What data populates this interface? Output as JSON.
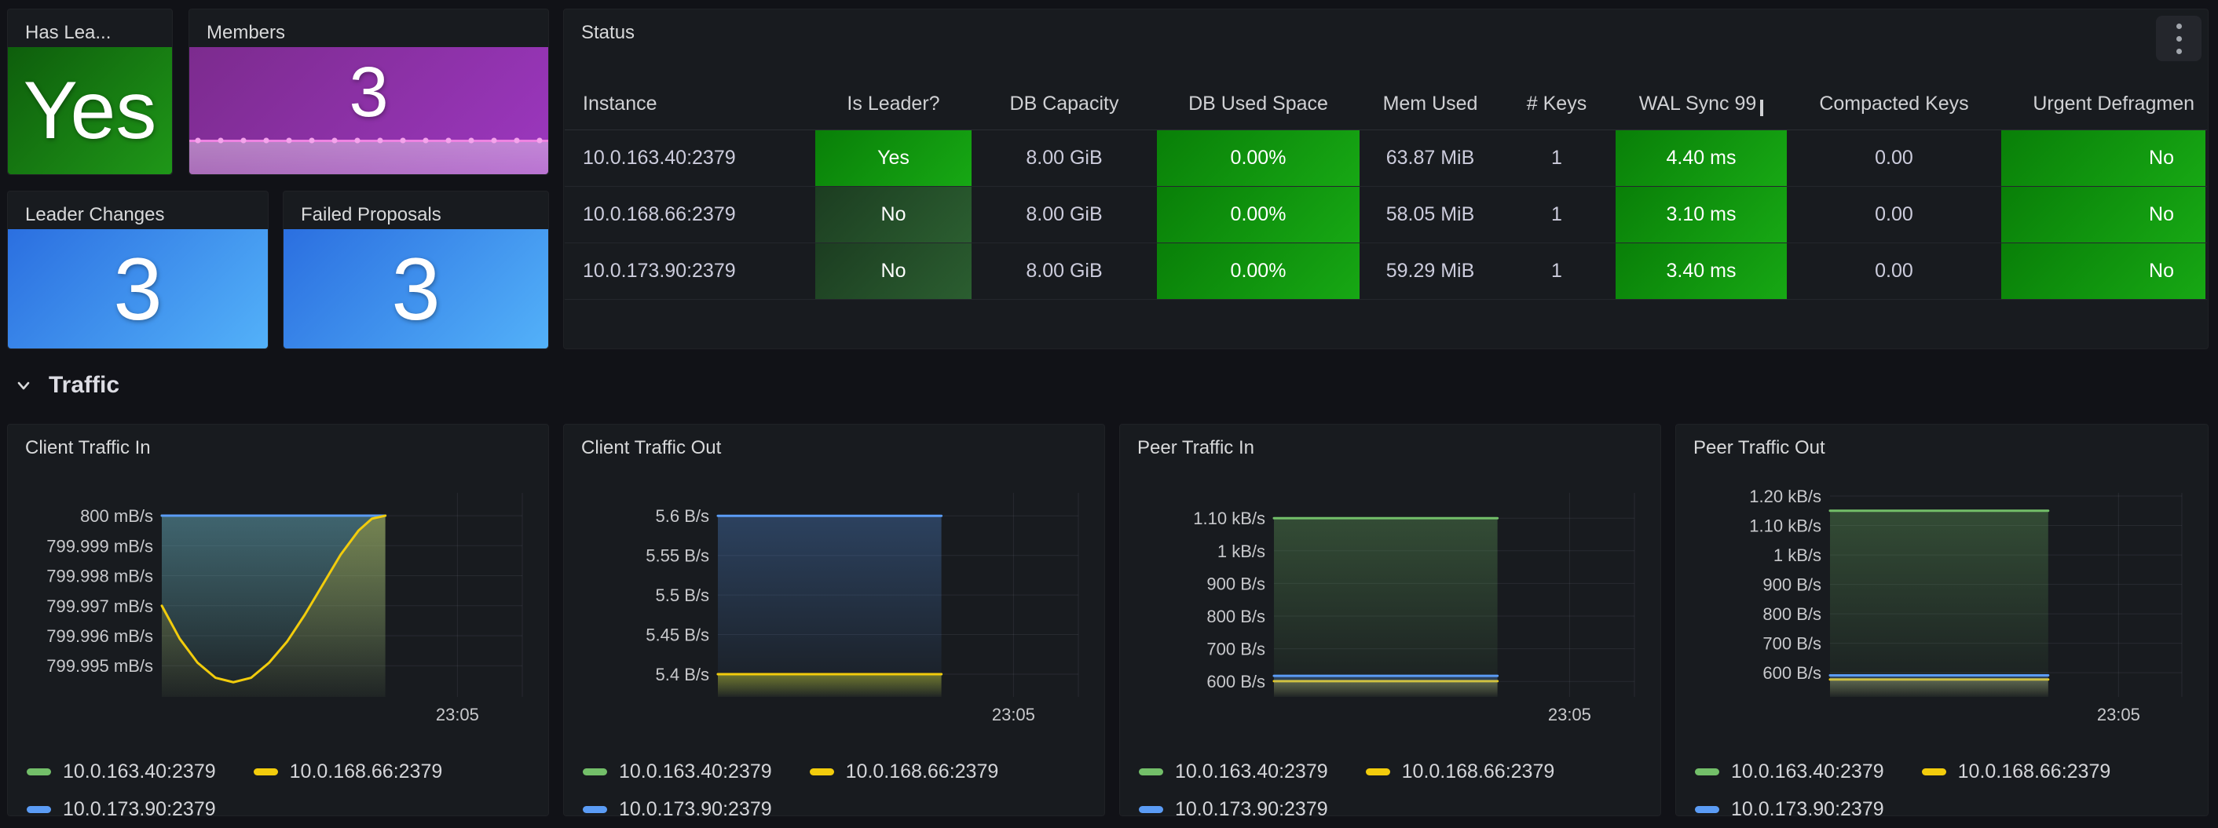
{
  "panels": {
    "has_leader": {
      "title": "Has Lea...",
      "value": "Yes"
    },
    "members": {
      "title": "Members",
      "value": "3",
      "sparkline": {
        "values": [
          3,
          3
        ],
        "line_color": "#EE82E2",
        "dot_color": "#F5A3EC"
      }
    },
    "leader_changes": {
      "title": "Leader Changes",
      "value": "3"
    },
    "failed_proposals": {
      "title": "Failed Proposals",
      "value": "3"
    },
    "status": {
      "title": "Status",
      "columns": [
        "Instance",
        "Is Leader?",
        "DB Capacity",
        "DB Used Space",
        "Mem Used",
        "# Keys",
        "WAL Sync 99",
        "Compacted Keys",
        "Urgent Defragmen"
      ],
      "rows": [
        {
          "instance": "10.0.163.40:2379",
          "is_leader": "Yes",
          "db_capacity": "8.00 GiB",
          "db_used": "0.00%",
          "mem_used": "63.87 MiB",
          "keys": "1",
          "wal_sync": "4.40 ms",
          "compacted": "0.00",
          "urgent_defrag": "No"
        },
        {
          "instance": "10.0.168.66:2379",
          "is_leader": "No",
          "db_capacity": "8.00 GiB",
          "db_used": "0.00%",
          "mem_used": "58.05 MiB",
          "keys": "1",
          "wal_sync": "3.10 ms",
          "compacted": "0.00",
          "urgent_defrag": "No"
        },
        {
          "instance": "10.0.173.90:2379",
          "is_leader": "No",
          "db_capacity": "8.00 GiB",
          "db_used": "0.00%",
          "mem_used": "59.29 MiB",
          "keys": "1",
          "wal_sync": "3.40 ms",
          "compacted": "0.00",
          "urgent_defrag": "No"
        }
      ]
    }
  },
  "section": {
    "title": "Traffic"
  },
  "instances": [
    {
      "label": "10.0.163.40:2379",
      "color": "#73BF69"
    },
    {
      "label": "10.0.168.66:2379",
      "color": "#F2CC0C"
    },
    {
      "label": "10.0.173.90:2379",
      "color": "#5B9CF5"
    }
  ],
  "colors": {
    "page_bg": "#111217",
    "panel_bg": "#181B1F",
    "stat_green": "#1F9718",
    "stat_purple": "#9C37BF",
    "stat_blue": "#53B1F9",
    "cell_green_bright": "#17A814",
    "cell_green_dark": "#2B5E30",
    "series_green": "#73BF69",
    "series_yellow": "#F2CC0C",
    "series_blue": "#5B9CF5"
  },
  "chart_data": [
    {
      "type": "area",
      "title": "Client Traffic In",
      "x_label": "23:05",
      "y_min": 799.99396,
      "y_max": 800.00076,
      "ticks": [
        {
          "v": 800,
          "label": "800 mB/s"
        },
        {
          "v": 799.999,
          "label": "799.999 mB/s"
        },
        {
          "v": 799.998,
          "label": "799.998 mB/s"
        },
        {
          "v": 799.997,
          "label": "799.997 mB/s"
        },
        {
          "v": 799.996,
          "label": "799.996 mB/s"
        },
        {
          "v": 799.995,
          "label": "799.995 mB/s"
        }
      ],
      "series": [
        {
          "name": "10.0.163.40:2379",
          "color": "#73BF69",
          "points": [
            [
              0,
              800
            ],
            [
              1,
              800
            ]
          ]
        },
        {
          "name": "10.0.173.90:2379",
          "color": "#5B9CF5",
          "points": [
            [
              0,
              800
            ],
            [
              1,
              800
            ]
          ]
        },
        {
          "name": "10.0.168.66:2379",
          "color": "#F2CC0C",
          "points": [
            [
              0,
              799.997
            ],
            [
              0.08,
              799.9959
            ],
            [
              0.16,
              799.9951
            ],
            [
              0.24,
              799.9946
            ],
            [
              0.32,
              799.99445
            ],
            [
              0.4,
              799.9946
            ],
            [
              0.48,
              799.9951
            ],
            [
              0.56,
              799.9958
            ],
            [
              0.64,
              799.9967
            ],
            [
              0.72,
              799.9977
            ],
            [
              0.8,
              799.9987
            ],
            [
              0.88,
              799.9995
            ],
            [
              0.94,
              799.9999
            ],
            [
              1,
              800
            ]
          ]
        }
      ],
      "data_end_frac": 0.62,
      "xlabel_frac": 0.82
    },
    {
      "type": "area",
      "title": "Client Traffic Out",
      "x_label": "23:05",
      "y_min": 5.3712,
      "y_max": 5.629,
      "ticks": [
        {
          "v": 5.6,
          "label": "5.6 B/s"
        },
        {
          "v": 5.55,
          "label": "5.55 B/s"
        },
        {
          "v": 5.5,
          "label": "5.5 B/s"
        },
        {
          "v": 5.45,
          "label": "5.45 B/s"
        },
        {
          "v": 5.4,
          "label": "5.4 B/s"
        }
      ],
      "series": [
        {
          "name": "10.0.173.90:2379",
          "color": "#5B9CF5",
          "points": [
            [
              0,
              5.6
            ],
            [
              1,
              5.6
            ]
          ]
        },
        {
          "name": "10.0.163.40:2379",
          "color": "#73BF69",
          "points": [
            [
              0,
              5.4
            ],
            [
              1,
              5.4
            ]
          ]
        },
        {
          "name": "10.0.168.66:2379",
          "color": "#F2CC0C",
          "points": [
            [
              0,
              5.4
            ],
            [
              1,
              5.4
            ]
          ]
        }
      ],
      "data_end_frac": 0.62,
      "xlabel_frac": 0.82
    },
    {
      "type": "area",
      "title": "Peer Traffic In",
      "x_label": "23:05",
      "y_min": 552.5,
      "y_max": 1177.5,
      "ticks": [
        {
          "v": 1100,
          "label": "1.10 kB/s"
        },
        {
          "v": 1000,
          "label": "1 kB/s"
        },
        {
          "v": 900,
          "label": "900 B/s"
        },
        {
          "v": 800,
          "label": "800 B/s"
        },
        {
          "v": 700,
          "label": "700 B/s"
        },
        {
          "v": 600,
          "label": "600 B/s"
        }
      ],
      "series": [
        {
          "name": "10.0.163.40:2379",
          "color": "#73BF69",
          "points": [
            [
              0,
              1100
            ],
            [
              1,
              1100
            ]
          ]
        },
        {
          "name": "10.0.168.66:2379",
          "color": "#F2CC0C",
          "points": [
            [
              0,
              601
            ],
            [
              1,
              601
            ]
          ]
        },
        {
          "name": "10.0.173.90:2379",
          "color": "#5B9CF5",
          "points": [
            [
              0,
              617
            ],
            [
              1,
              617
            ]
          ]
        }
      ],
      "data_end_frac": 0.62,
      "xlabel_frac": 0.82
    },
    {
      "type": "area",
      "title": "Peer Traffic Out",
      "x_label": "23:05",
      "y_min": 517.7,
      "y_max": 1210.7,
      "ticks": [
        {
          "v": 1200,
          "label": "1.20 kB/s"
        },
        {
          "v": 1100,
          "label": "1.10 kB/s"
        },
        {
          "v": 1000,
          "label": "1 kB/s"
        },
        {
          "v": 900,
          "label": "900 B/s"
        },
        {
          "v": 800,
          "label": "800 B/s"
        },
        {
          "v": 700,
          "label": "700 B/s"
        },
        {
          "v": 600,
          "label": "600 B/s"
        }
      ],
      "series": [
        {
          "name": "10.0.163.40:2379",
          "color": "#73BF69",
          "points": [
            [
              0,
              1150
            ],
            [
              1,
              1150
            ]
          ]
        },
        {
          "name": "10.0.168.66:2379",
          "color": "#F2CC0C",
          "points": [
            [
              0,
              577
            ],
            [
              1,
              577
            ]
          ]
        },
        {
          "name": "10.0.173.90:2379",
          "color": "#5B9CF5",
          "points": [
            [
              0,
              591
            ],
            [
              1,
              591
            ]
          ]
        }
      ],
      "data_end_frac": 0.62,
      "xlabel_frac": 0.82
    }
  ]
}
